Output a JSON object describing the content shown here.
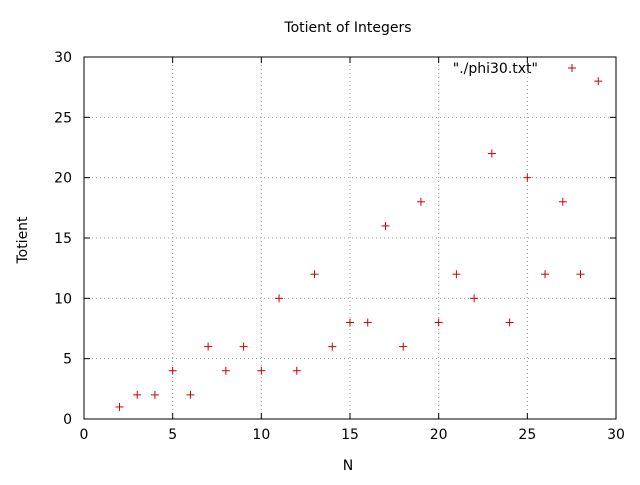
{
  "chart_data": {
    "type": "scatter",
    "title": "Totient of Integers",
    "xlabel": "N",
    "ylabel": "Totient",
    "xlim": [
      0,
      30
    ],
    "ylim": [
      0,
      30
    ],
    "xticks": [
      0,
      5,
      10,
      15,
      20,
      25,
      30
    ],
    "yticks": [
      0,
      5,
      10,
      15,
      20,
      25,
      30
    ],
    "grid": true,
    "legend_position": "top-right",
    "series": [
      {
        "name": "\"./phi30.txt\"",
        "color": "#cc0000",
        "marker": "plus",
        "x": [
          2,
          3,
          4,
          5,
          6,
          7,
          8,
          9,
          10,
          11,
          12,
          13,
          14,
          15,
          16,
          17,
          18,
          19,
          20,
          21,
          22,
          23,
          24,
          25,
          26,
          27,
          28,
          29
        ],
        "y": [
          1,
          2,
          2,
          4,
          2,
          6,
          4,
          6,
          4,
          10,
          4,
          12,
          6,
          8,
          8,
          16,
          6,
          18,
          8,
          12,
          10,
          22,
          8,
          20,
          12,
          18,
          12,
          28
        ]
      }
    ]
  }
}
